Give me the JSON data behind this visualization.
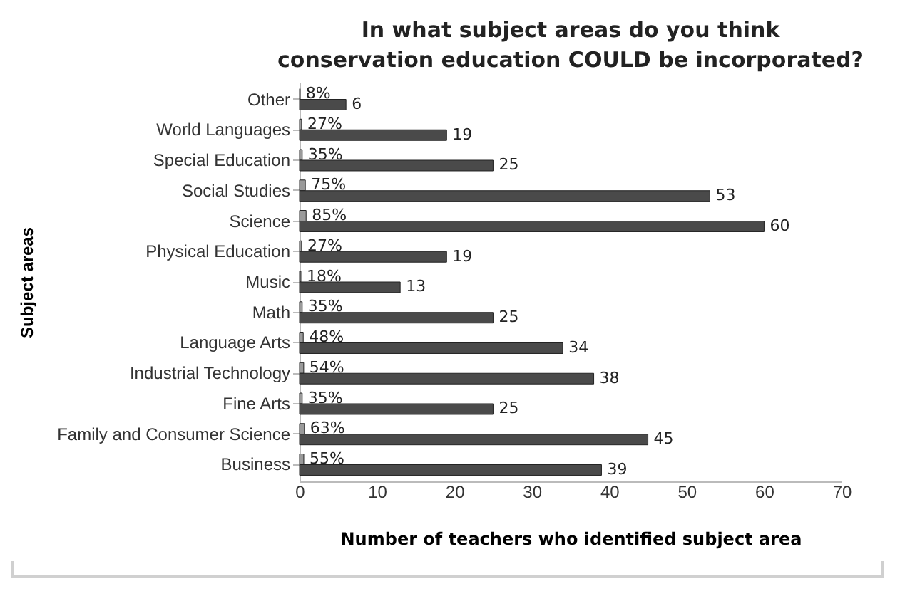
{
  "chart_data": {
    "type": "bar",
    "orientation": "horizontal",
    "title": "In what subject areas do you think conservation education COULD be incorporated?",
    "xlabel": "Number of teachers who identified subject area",
    "ylabel": "Subject  areas",
    "categories": [
      "Other",
      "World Languages",
      "Special Education",
      "Social Studies",
      "Science",
      "Physical Education",
      "Music",
      "Math",
      "Language Arts",
      "Industrial Technology",
      "Fine Arts",
      "Family and Consumer Science",
      "Business"
    ],
    "series": [
      {
        "color": "#9a9a9a",
        "values": [
          0.08,
          0.27,
          0.35,
          0.75,
          0.85,
          0.27,
          0.18,
          0.35,
          0.48,
          0.54,
          0.35,
          0.63,
          0.55
        ],
        "value_labels": [
          "8%",
          "27%",
          "35%",
          "75%",
          "85%",
          "27%",
          "18%",
          "35%",
          "48%",
          "54%",
          "35%",
          "63%",
          "55%"
        ]
      },
      {
        "color": "#4a4a4a",
        "values": [
          6,
          19,
          25,
          53,
          60,
          19,
          13,
          25,
          34,
          38,
          25,
          45,
          39
        ],
        "value_labels": [
          "6",
          "19",
          "25",
          "53",
          "60",
          "19",
          "13",
          "25",
          "34",
          "38",
          "25",
          "45",
          "39"
        ]
      }
    ],
    "xlim": [
      0,
      70
    ],
    "xticks": [
      0,
      10,
      20,
      30,
      40,
      50,
      60,
      70
    ],
    "grid": false,
    "legend": false
  }
}
